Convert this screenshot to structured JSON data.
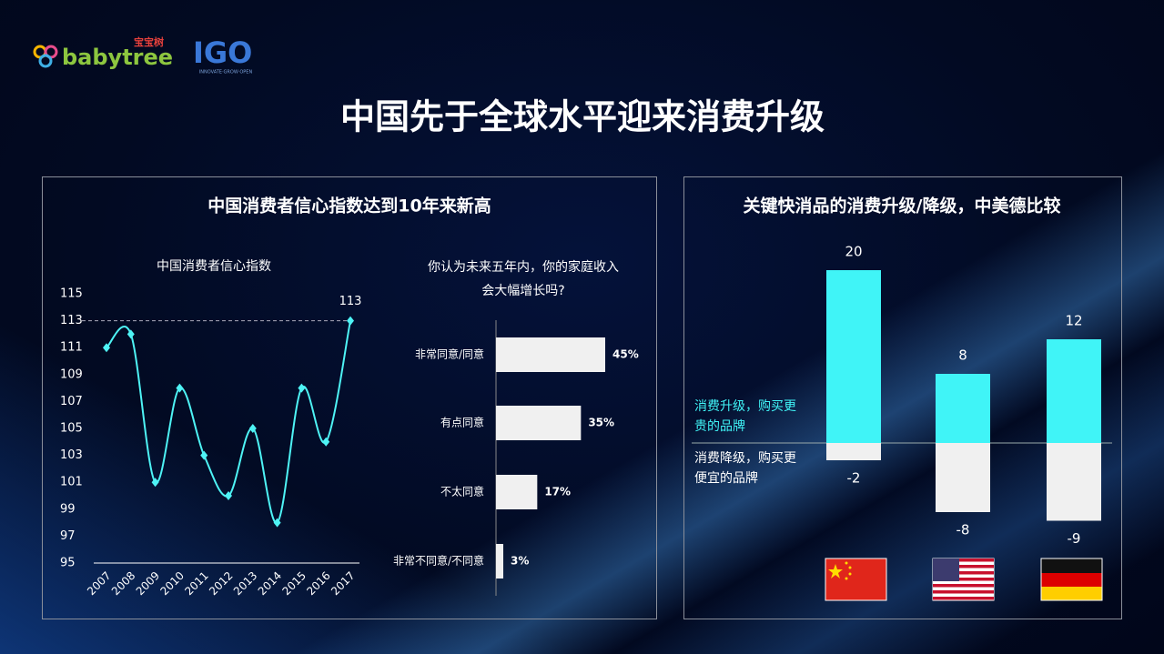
{
  "logos": {
    "babytree": "babytree",
    "babytree_cn": "宝宝树",
    "igo": "IGO",
    "igo_tagline": "INNOVATE·GROW·OPEN"
  },
  "title": "中国先于全球水平迎来消费升级",
  "panels": [
    {
      "title": "中国消费者信心指数达到10年来新高"
    },
    {
      "title": "关键快消品的消费升级/降级，中美德比较"
    }
  ],
  "chart_data": [
    {
      "type": "line",
      "title": "中国消费者信心指数",
      "color": "#4ef3f5",
      "categories": [
        "2007",
        "2008",
        "2009",
        "2010",
        "2011",
        "2012",
        "2013",
        "2014",
        "2015",
        "2016",
        "2017"
      ],
      "values": [
        111,
        112,
        101,
        108,
        103,
        100,
        105,
        98,
        108,
        104,
        113
      ],
      "ylim": [
        95,
        115
      ],
      "yticks": [
        95,
        97,
        99,
        101,
        103,
        105,
        107,
        109,
        111,
        113,
        115
      ]
    },
    {
      "type": "hbar",
      "title": [
        "你认为未来五年内，你的家庭收入",
        "会大幅增长吗?"
      ],
      "color": "#f0f0f0",
      "categories": [
        "非常同意/同意",
        "有点同意",
        "不太同意",
        "非常不同意/不同意"
      ],
      "values": [
        45,
        35,
        17,
        3
      ],
      "value_labels": [
        "45%",
        "35%",
        "17%",
        "3%"
      ]
    },
    {
      "type": "diverging-bar",
      "categories": [
        null,
        null,
        null
      ],
      "series": [
        {
          "name": "消费升级，购买更贵的品牌",
          "color": "#40f4f7",
          "values": [
            20,
            8,
            12
          ]
        },
        {
          "name": "消费降级，购买更便宜的品牌",
          "color": "#f0f0f0",
          "values": [
            -2,
            -8,
            -9
          ]
        }
      ]
    }
  ]
}
